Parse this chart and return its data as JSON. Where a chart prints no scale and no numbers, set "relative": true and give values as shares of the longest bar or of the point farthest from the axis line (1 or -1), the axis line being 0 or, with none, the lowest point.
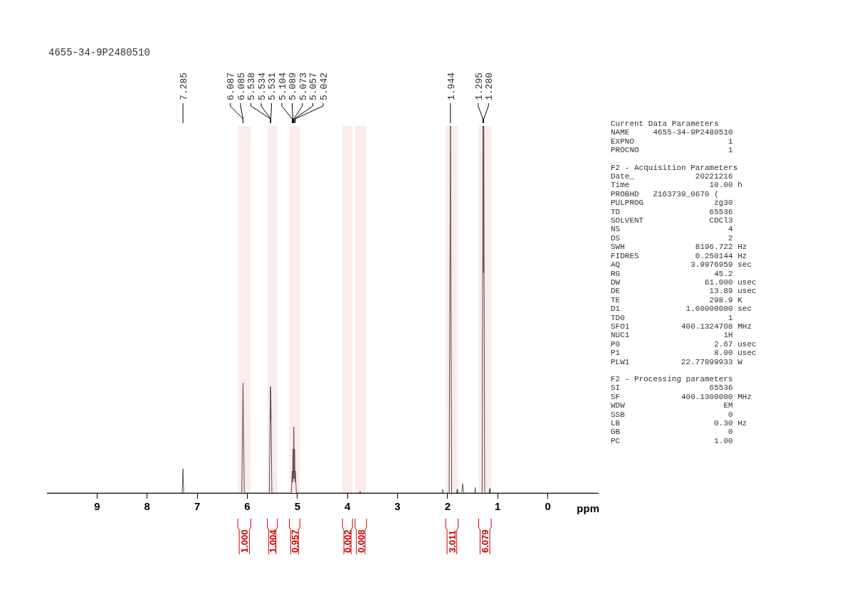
{
  "chart_data": {
    "type": "line",
    "title": "4655-34-9P2480510",
    "xlabel": "ppm",
    "relative": true,
    "xlim": [
      10,
      -1
    ],
    "xticks": [
      9,
      8,
      7,
      6,
      5,
      4,
      3,
      2,
      1,
      0
    ],
    "x": [
      10,
      7.3,
      7.285,
      7.27,
      6.11,
      6.087,
      6.085,
      6.06,
      5.56,
      5.538,
      5.534,
      5.531,
      5.51,
      5.12,
      5.104,
      5.097,
      5.089,
      5.081,
      5.073,
      5.065,
      5.057,
      5.05,
      5.042,
      5.02,
      3.76,
      3.75,
      3.74,
      2.11,
      2.1,
      2.09,
      1.97,
      1.944,
      1.92,
      1.82,
      1.81,
      1.8,
      1.72,
      1.7,
      1.68,
      1.46,
      1.45,
      1.44,
      1.31,
      1.295,
      1.288,
      1.28,
      1.26,
      1.17,
      1.16,
      1.15,
      -1
    ],
    "series": [
      {
        "color": "#555555",
        "values": [
          0,
          0,
          0.066,
          0,
          0,
          0.29,
          0.3,
          0,
          0,
          0.29,
          0.2,
          0.28,
          0,
          0,
          0.06,
          0.03,
          0.12,
          0.04,
          0.18,
          0.04,
          0.12,
          0.03,
          0.06,
          0,
          0,
          0.005,
          0,
          0,
          0.01,
          0,
          0,
          1,
          0,
          0,
          0.01,
          0,
          0,
          0.025,
          0,
          0,
          0.015,
          0,
          0,
          1,
          0.6,
          1,
          0,
          0,
          0.012,
          0,
          0
        ]
      }
    ],
    "bands": [
      {
        "axis": "x",
        "from": 6.19,
        "to": 5.93,
        "label": "1.000",
        "color": "#cc0000"
      },
      {
        "axis": "x",
        "from": 5.6,
        "to": 5.4,
        "label": "1.004",
        "color": "#cc0000"
      },
      {
        "axis": "x",
        "from": 5.16,
        "to": 4.95,
        "label": "0.957",
        "color": "#cc0000"
      },
      {
        "axis": "x",
        "from": 4.1,
        "to": 3.9,
        "label": "0.002",
        "color": "#cc0000"
      },
      {
        "axis": "x",
        "from": 3.85,
        "to": 3.62,
        "label": "0.008",
        "color": "#cc0000"
      },
      {
        "axis": "x",
        "from": 2.04,
        "to": 1.79,
        "label": "3.011",
        "color": "#cc0000"
      },
      {
        "axis": "x",
        "from": 1.38,
        "to": 1.13,
        "label": "6.079",
        "color": "#cc0000"
      }
    ],
    "annotations": [
      {
        "text": "7.285",
        "x": 7.285
      },
      {
        "text": "6.087",
        "x": 6.087
      },
      {
        "text": "6.085",
        "x": 6.085
      },
      {
        "text": "5.538",
        "x": 5.538
      },
      {
        "text": "5.534",
        "x": 5.534
      },
      {
        "text": "5.531",
        "x": 5.531
      },
      {
        "text": "5.104",
        "x": 5.104
      },
      {
        "text": "5.089",
        "x": 5.089
      },
      {
        "text": "5.073",
        "x": 5.073
      },
      {
        "text": "5.057",
        "x": 5.057
      },
      {
        "text": "5.042",
        "x": 5.042
      },
      {
        "text": "1.944",
        "x": 1.944
      },
      {
        "text": "1.295",
        "x": 1.295
      },
      {
        "text": "1.280",
        "x": 1.28
      },
      "Current Data Parameters\nNAME     4655-34-9P2480510\nEXPNO                    1\nPROCNO                   1",
      "F2 - Acquisition Parameters\nDate_             20221216\nTime                 10.00 h\nPROBHD   Z163739_0670 (\nPULPROG               zg30\nTD                   65536\nSOLVENT              CDCl3\nNS                       4\nDS                       2\nSWH               8196.722 Hz\nFIDRES            0.250144 Hz\nAQ               3.9976959 sec\nRG                    45.2\nDW                  61.000 usec\nDE                   13.89 usec\nTE                   298.9 K\nD1              1.00000000 sec\nTD0                      1\nSFO1           400.1324708 MHz\nNUC1                    1H\nP0                    2.67 usec\nP1                    8.00 usec\nPLW1           22.77899933 W",
      "F2 - Processing parameters\nSI                   65536\nSF             400.1300000 MHz\nWDW                     EM\nSSB                      0\nLB                    0.30 Hz\nGB                       0\nPC                    1.00"
    ]
  }
}
